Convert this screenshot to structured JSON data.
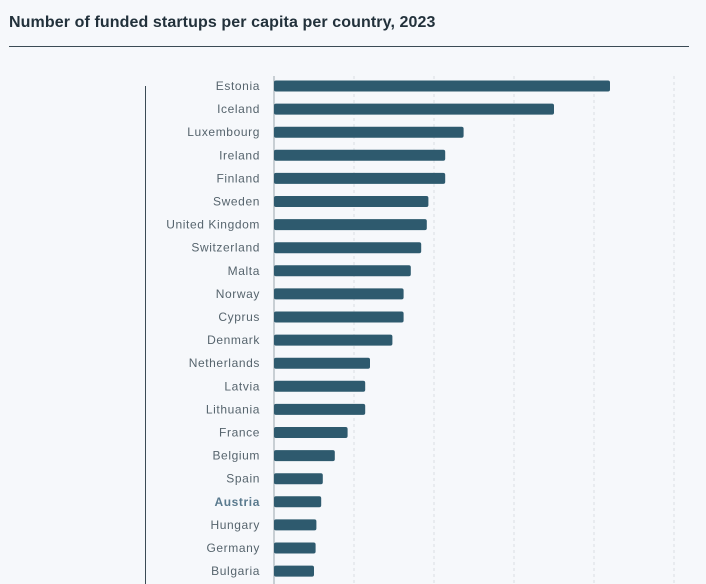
{
  "page": {
    "title": "Number of funded startups per capita per country, 2023"
  },
  "colors": {
    "bar": "#2e5a6e",
    "grid": "#d9dee3",
    "highlight_label": "#5a7a8e"
  },
  "chart_data": {
    "type": "bar",
    "orientation": "horizontal",
    "title": "Number of funded startups per capita per country, 2023",
    "xlabel": "",
    "ylabel": "",
    "categories": [
      "Estonia",
      "Iceland",
      "Luxembourg",
      "Ireland",
      "Finland",
      "Sweden",
      "United Kingdom",
      "Switzerland",
      "Malta",
      "Norway",
      "Cyprus",
      "Denmark",
      "Netherlands",
      "Latvia",
      "Lithuania",
      "France",
      "Belgium",
      "Spain",
      "Austria",
      "Hungary",
      "Germany",
      "Bulgaria"
    ],
    "values": [
      4.2,
      3.5,
      2.37,
      2.14,
      2.14,
      1.93,
      1.91,
      1.84,
      1.71,
      1.62,
      1.62,
      1.48,
      1.2,
      1.14,
      1.14,
      0.92,
      0.76,
      0.61,
      0.59,
      0.53,
      0.52,
      0.5
    ],
    "highlight": "Austria",
    "xlim": [
      0,
      5
    ],
    "grid": true
  }
}
